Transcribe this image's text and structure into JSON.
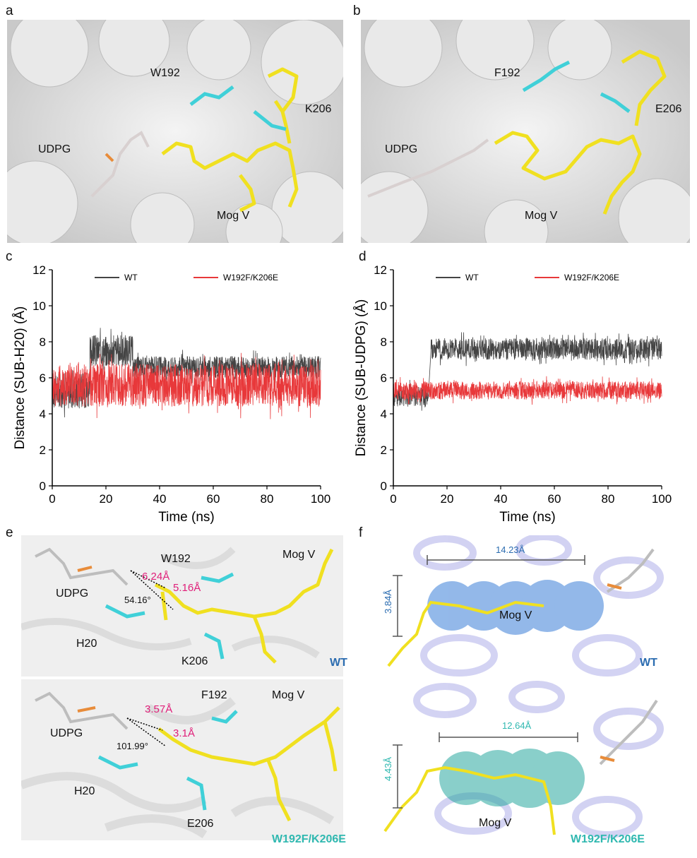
{
  "panels": {
    "a": {
      "letter": "a",
      "labels": {
        "res1": "W192",
        "res2": "K206",
        "udpg": "UDPG",
        "sub": "Mog V"
      }
    },
    "b": {
      "letter": "b",
      "labels": {
        "res1": "F192",
        "res2": "E206",
        "udpg": "UDPG",
        "sub": "Mog V"
      }
    },
    "c": {
      "letter": "c"
    },
    "d": {
      "letter": "d"
    },
    "e": {
      "letter": "e",
      "wt": {
        "res1": "W192",
        "res2": "K206",
        "his": "H20",
        "udpg": "UDPG",
        "sub": "Mog V",
        "d1": "6.24Å",
        "d2": "5.16Å",
        "angle": "54.16°",
        "tag": "WT"
      },
      "mut": {
        "res1": "F192",
        "res2": "E206",
        "his": "H20",
        "udpg": "UDPG",
        "sub": "Mog V",
        "d1": "3.57Å",
        "d2": "3.1Å",
        "angle": "101.99°",
        "tag": "W192F/K206E"
      }
    },
    "f": {
      "letter": "f",
      "wt": {
        "length": "14.23Å",
        "width": "3.84Å",
        "sub": "Mog V",
        "tag": "WT"
      },
      "mut": {
        "length": "12.64Å",
        "width": "4.43Å",
        "sub": "Mog V",
        "tag": "W192F/K206E"
      }
    }
  },
  "colors": {
    "wt_series": "#444444",
    "mut_series": "#e8383a",
    "wt_tag": "#2b6cb0",
    "mut_tag": "#2fb8b0",
    "distance_label": "#e0207a"
  },
  "chart_data": [
    {
      "type": "line",
      "panel": "c",
      "xlabel": "Time (ns)",
      "ylabel": "Distance (SUB-H20) (Å)",
      "xlim": [
        0,
        100
      ],
      "ylim": [
        0,
        12
      ],
      "xticks": [
        "0",
        "20",
        "40",
        "60",
        "80",
        "100"
      ],
      "yticks": [
        "0",
        "2",
        "4",
        "6",
        "8",
        "10",
        "12"
      ],
      "legend_placement": "top",
      "series": [
        {
          "name": "WT",
          "color": "#444444",
          "segments": [
            {
              "x": [
                0,
                14
              ],
              "mean": 5.3,
              "spread": 1.0
            },
            {
              "x": [
                14,
                30
              ],
              "mean": 7.5,
              "spread": 0.9
            },
            {
              "x": [
                30,
                100
              ],
              "mean": 6.6,
              "spread": 0.6
            }
          ]
        },
        {
          "name": "W192F/K206E",
          "color": "#e8383a",
          "segments": [
            {
              "x": [
                0,
                100
              ],
              "mean": 5.6,
              "spread": 1.2
            }
          ]
        }
      ]
    },
    {
      "type": "line",
      "panel": "d",
      "xlabel": "Time (ns)",
      "ylabel": "Distance (SUB-UDPG) (Å)",
      "xlim": [
        0,
        100
      ],
      "ylim": [
        0,
        12
      ],
      "xticks": [
        "0",
        "20",
        "40",
        "60",
        "80",
        "100"
      ],
      "yticks": [
        "0",
        "2",
        "4",
        "6",
        "8",
        "10",
        "12"
      ],
      "legend_placement": "top",
      "series": [
        {
          "name": "WT",
          "color": "#444444",
          "segments": [
            {
              "x": [
                0,
                13
              ],
              "mean": 5.0,
              "spread": 0.6
            },
            {
              "x": [
                14,
                100
              ],
              "mean": 7.6,
              "spread": 0.6
            }
          ]
        },
        {
          "name": "W192F/K206E",
          "color": "#e8383a",
          "segments": [
            {
              "x": [
                0,
                100
              ],
              "mean": 5.3,
              "spread": 0.5
            }
          ]
        }
      ]
    }
  ]
}
